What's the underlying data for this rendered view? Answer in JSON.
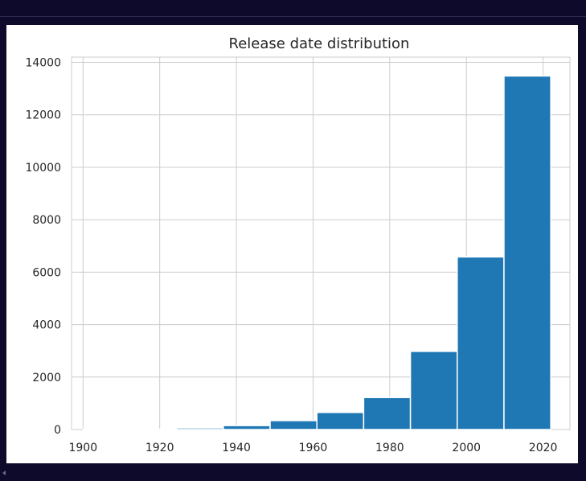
{
  "chart_data": {
    "type": "bar",
    "title": "Release date distribution",
    "xlabel": "",
    "ylabel": "",
    "bin_edges": [
      1900,
      1912.2,
      1924.4,
      1936.6,
      1948.8,
      1961,
      1973.2,
      1985.4,
      1997.6,
      2009.8,
      2022
    ],
    "values": [
      10,
      15,
      60,
      150,
      340,
      650,
      1220,
      2980,
      6580,
      13480
    ],
    "xlim": [
      1897,
      2027
    ],
    "ylim": [
      0,
      14200
    ],
    "x_ticks": [
      "1900",
      "1920",
      "1940",
      "1960",
      "1980",
      "2000",
      "2020"
    ],
    "y_ticks": [
      "0",
      "2000",
      "4000",
      "6000",
      "8000",
      "10000",
      "12000",
      "14000"
    ],
    "bar_color": "#1f77b4",
    "grid": true,
    "legend": "none"
  }
}
